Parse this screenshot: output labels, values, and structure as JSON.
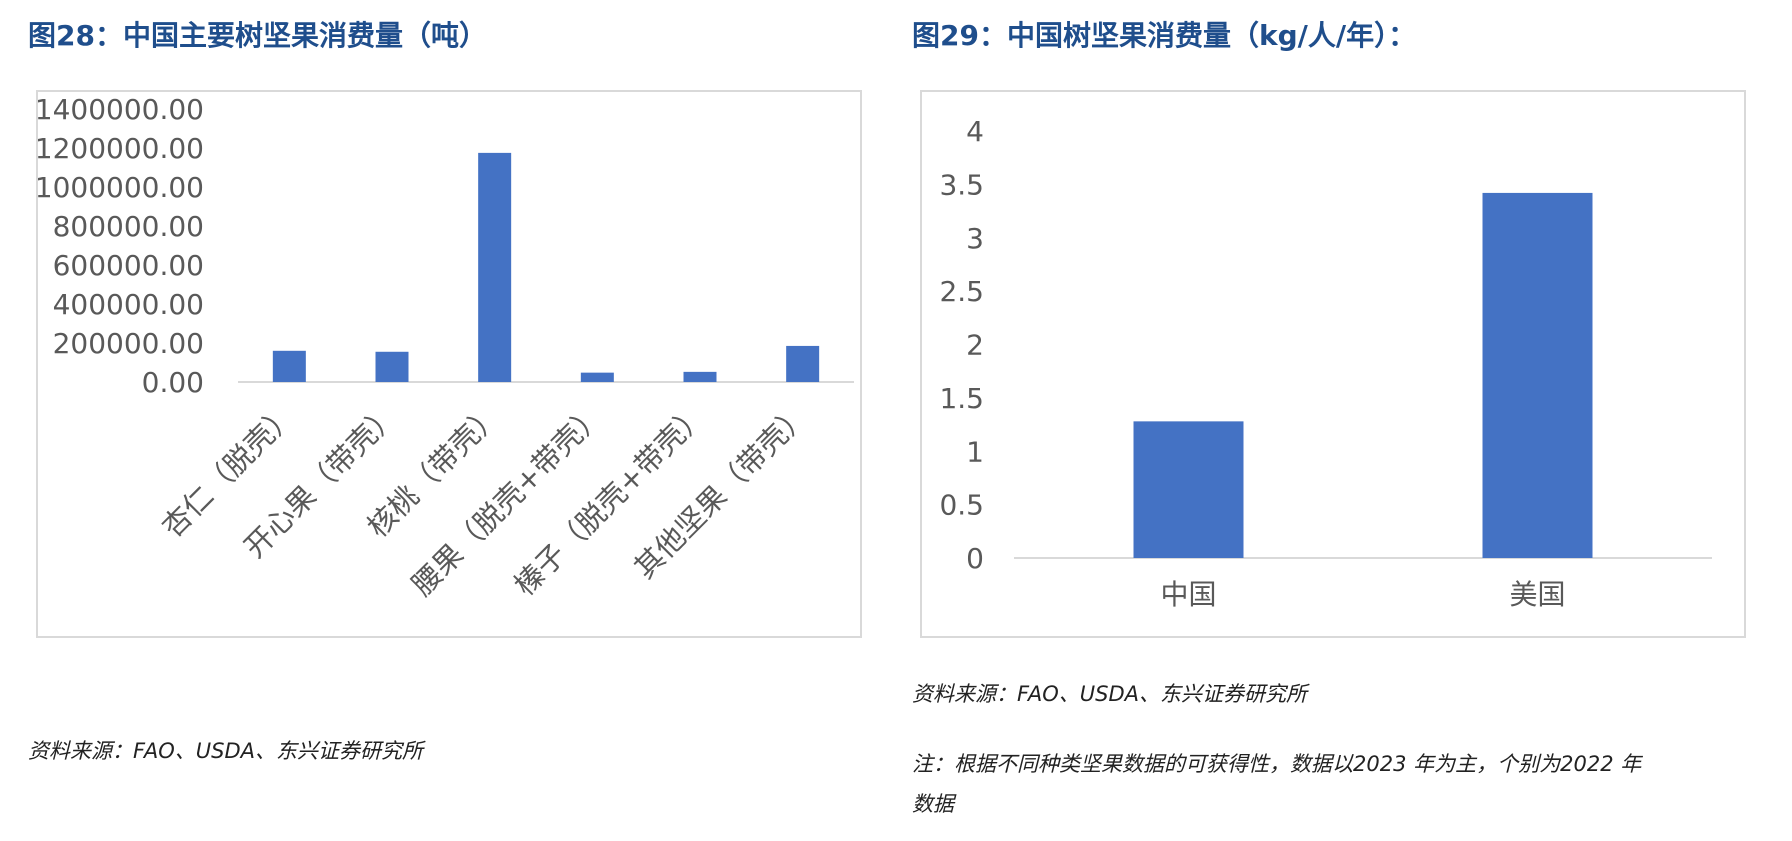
{
  "figures": [
    {
      "title": "图28：中国主要树坚果消费量（吨）",
      "source": "资料来源：FAO、USDA、东兴证券研究所"
    },
    {
      "title": "图29：中国树坚果消费量（kg/人/年）：",
      "source": "资料来源：FAO、USDA、东兴证券研究所",
      "note_line1": "注：根据不同种类坚果数据的可获得性，数据以2023 年为主，个别为2022 年",
      "note_line2": "数据"
    }
  ],
  "chart_data": [
    {
      "type": "bar",
      "categories": [
        "杏仁（脱壳）",
        "开心果（带壳）",
        "核桃（带壳）",
        "腰果（脱壳+带壳）",
        "榛子（脱壳+带壳）",
        "其他坚果（带壳）"
      ],
      "values": [
        160000,
        155000,
        1175000,
        48000,
        52000,
        185000
      ],
      "ylim": [
        0,
        1400000
      ],
      "yticks": [
        0,
        200000,
        400000,
        600000,
        800000,
        1000000,
        1200000,
        1400000
      ],
      "ytick_labels": [
        "0.00",
        "200000.00",
        "400000.00",
        "600000.00",
        "800000.00",
        "1000000.00",
        "1200000.00",
        "1400000.00"
      ],
      "bar_color": "#4472C4",
      "grid": false
    },
    {
      "type": "bar",
      "categories": [
        "中国",
        "美国"
      ],
      "values": [
        1.28,
        3.42
      ],
      "ylim": [
        0,
        4
      ],
      "yticks": [
        0,
        0.5,
        1,
        1.5,
        2,
        2.5,
        3,
        3.5,
        4
      ],
      "ytick_labels": [
        "0",
        "0.5",
        "1",
        "1.5",
        "2",
        "2.5",
        "3",
        "3.5",
        "4"
      ],
      "bar_color": "#4472C4",
      "grid": false
    }
  ]
}
